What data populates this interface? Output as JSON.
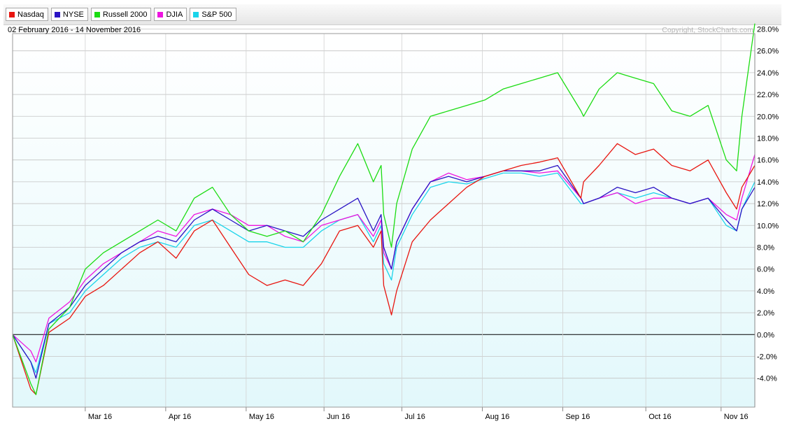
{
  "chart_data": {
    "type": "line",
    "date_range": "02 February 2016 - 14 November 2016",
    "copyright": "Copyright, StockCharts.com",
    "x_ticks": [
      "Mar 16",
      "Apr 16",
      "May 16",
      "Jun 16",
      "Jul 16",
      "Aug 16",
      "Sep 16",
      "Oct 16",
      "Nov 16"
    ],
    "y_ticks": [
      "28.0%",
      "26.0%",
      "24.0%",
      "22.0%",
      "20.0%",
      "18.0%",
      "16.0%",
      "14.0%",
      "12.0%",
      "10.0%",
      "8.0%",
      "6.0%",
      "4.0%",
      "2.0%",
      "0.0%",
      "-2.0%",
      "-4.0%"
    ],
    "ylim": [
      -5.6,
      28.8
    ],
    "grid": true,
    "legend_position": "top-left",
    "x": [
      "2016-02-02",
      "2016-02-09",
      "2016-02-11",
      "2016-02-16",
      "2016-02-24",
      "2016-03-01",
      "2016-03-08",
      "2016-03-15",
      "2016-03-22",
      "2016-03-29",
      "2016-04-05",
      "2016-04-12",
      "2016-04-19",
      "2016-04-26",
      "2016-05-03",
      "2016-05-10",
      "2016-05-17",
      "2016-05-24",
      "2016-05-31",
      "2016-06-07",
      "2016-06-14",
      "2016-06-20",
      "2016-06-23",
      "2016-06-24",
      "2016-06-27",
      "2016-06-29",
      "2016-07-05",
      "2016-07-12",
      "2016-07-19",
      "2016-07-26",
      "2016-08-02",
      "2016-08-09",
      "2016-08-16",
      "2016-08-23",
      "2016-08-30",
      "2016-09-08",
      "2016-09-09",
      "2016-09-15",
      "2016-09-22",
      "2016-09-29",
      "2016-10-06",
      "2016-10-13",
      "2016-10-20",
      "2016-10-27",
      "2016-11-03",
      "2016-11-07",
      "2016-11-09",
      "2016-11-14"
    ],
    "series": [
      {
        "name": "Nasdaq",
        "color": "#e8150f",
        "values": [
          0.0,
          -5.0,
          -5.5,
          0.2,
          1.5,
          3.5,
          4.5,
          6.0,
          7.5,
          8.5,
          7.0,
          9.5,
          10.5,
          8.0,
          5.5,
          4.5,
          5.0,
          4.5,
          6.5,
          9.5,
          10.0,
          8.0,
          9.5,
          4.5,
          1.8,
          4.0,
          8.5,
          10.5,
          12.0,
          13.5,
          14.5,
          15.0,
          15.5,
          15.8,
          16.2,
          12.5,
          14.0,
          15.5,
          17.5,
          16.5,
          17.0,
          15.5,
          15.0,
          16.0,
          13.0,
          11.5,
          13.5,
          15.5
        ]
      },
      {
        "name": "NYSE",
        "color": "#2a13c4",
        "values": [
          0.0,
          -2.5,
          -4.0,
          1.0,
          2.5,
          4.5,
          6.0,
          7.5,
          8.5,
          9.0,
          8.5,
          10.5,
          11.5,
          10.5,
          9.5,
          10.0,
          9.5,
          9.0,
          10.5,
          11.5,
          12.5,
          9.5,
          11.0,
          8.0,
          6.0,
          8.5,
          11.5,
          14.0,
          14.5,
          14.0,
          14.5,
          15.0,
          15.0,
          15.0,
          15.5,
          12.5,
          12.0,
          12.5,
          13.5,
          13.0,
          13.5,
          12.5,
          12.0,
          12.5,
          10.5,
          9.5,
          11.5,
          13.5
        ]
      },
      {
        "name": "Russell 2000",
        "color": "#1bdc12",
        "values": [
          0.0,
          -4.5,
          -5.5,
          0.5,
          2.5,
          6.0,
          7.5,
          8.5,
          9.5,
          10.5,
          9.5,
          12.5,
          13.5,
          11.0,
          9.5,
          9.0,
          9.5,
          8.5,
          11.0,
          14.5,
          17.5,
          14.0,
          15.5,
          11.0,
          8.0,
          12.0,
          17.0,
          20.0,
          20.5,
          21.0,
          21.5,
          22.5,
          23.0,
          23.5,
          24.0,
          20.5,
          20.0,
          22.5,
          24.0,
          23.5,
          23.0,
          20.5,
          20.0,
          21.0,
          16.0,
          15.0,
          20.0,
          28.5
        ]
      },
      {
        "name": "DJIA",
        "color": "#ee14e0",
        "values": [
          0.0,
          -1.5,
          -2.5,
          1.5,
          3.0,
          5.0,
          6.5,
          7.5,
          8.5,
          9.5,
          9.0,
          11.0,
          11.5,
          11.0,
          10.0,
          10.0,
          9.0,
          8.5,
          10.0,
          10.5,
          11.0,
          9.0,
          10.5,
          7.5,
          6.0,
          8.5,
          11.5,
          14.0,
          14.8,
          14.2,
          14.5,
          15.0,
          15.0,
          14.8,
          15.0,
          12.5,
          12.0,
          12.5,
          13.0,
          12.0,
          12.5,
          12.5,
          12.0,
          12.5,
          11.0,
          10.5,
          12.5,
          16.5
        ]
      },
      {
        "name": "S&P 500",
        "color": "#1ad4ea",
        "values": [
          0.0,
          -2.5,
          -3.5,
          1.0,
          2.0,
          4.0,
          5.5,
          7.0,
          8.0,
          8.5,
          8.0,
          10.0,
          10.5,
          9.5,
          8.5,
          8.5,
          8.0,
          8.0,
          9.5,
          10.5,
          11.0,
          8.5,
          10.0,
          6.5,
          5.0,
          8.0,
          11.0,
          13.5,
          14.0,
          13.8,
          14.3,
          14.8,
          14.8,
          14.5,
          14.8,
          12.0,
          12.0,
          12.5,
          13.0,
          12.5,
          13.0,
          12.5,
          12.0,
          12.5,
          10.0,
          9.5,
          11.5,
          14.0
        ]
      }
    ]
  }
}
